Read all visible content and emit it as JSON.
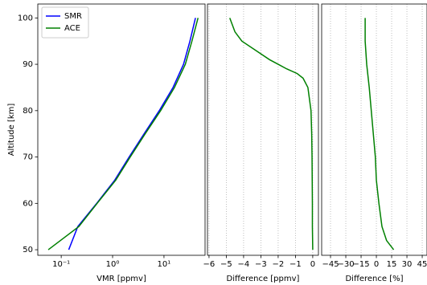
{
  "chart_data": [
    {
      "type": "line",
      "xlabel": "VMR [ppmv]",
      "ylabel": "Altitude [km]",
      "xscale": "log",
      "xlim": [
        0.035,
        63
      ],
      "xticks": [
        {
          "value": 0.1,
          "label": "10⁻¹"
        },
        {
          "value": 1,
          "label": "10⁰"
        },
        {
          "value": 10,
          "label": "10¹"
        }
      ],
      "ylim": [
        48.8,
        103
      ],
      "yticks": [
        50,
        60,
        70,
        80,
        90,
        100
      ],
      "legend": "upper left",
      "y": [
        50,
        55,
        60,
        65,
        70,
        75,
        80,
        85,
        90,
        95,
        100
      ],
      "series": [
        {
          "name": "SMR",
          "color": "#0000ff",
          "values": [
            0.14,
            0.21,
            0.49,
            1.1,
            2.1,
            4.1,
            8.1,
            15,
            24,
            32,
            41
          ]
        },
        {
          "name": "ACE",
          "color": "#008000",
          "values": [
            0.056,
            0.22,
            0.5,
            1.15,
            2.2,
            4.3,
            8.6,
            16,
            26,
            35,
            46
          ]
        }
      ]
    },
    {
      "type": "line",
      "xlabel": "Difference [ppmv]",
      "grid": true,
      "xlim": [
        -6.09,
        0.33
      ],
      "xticks": [
        {
          "value": -6,
          "label": "−6"
        },
        {
          "value": -5,
          "label": "−5"
        },
        {
          "value": -4,
          "label": "−4"
        },
        {
          "value": -3,
          "label": "−3"
        },
        {
          "value": -2,
          "label": "−2"
        },
        {
          "value": -1,
          "label": "−1"
        },
        0
      ],
      "ylim": [
        48.8,
        103
      ],
      "y": [
        50,
        55,
        60,
        65,
        70,
        75,
        80,
        85,
        87,
        88,
        89,
        90,
        91,
        93,
        95,
        97,
        100
      ],
      "series": [
        {
          "color": "#008000",
          "values": [
            0,
            -0.02,
            -0.02,
            -0.03,
            -0.04,
            -0.06,
            -0.1,
            -0.28,
            -0.56,
            -0.9,
            -1.5,
            -2.0,
            -2.5,
            -3.3,
            -4.1,
            -4.5,
            -4.8
          ]
        }
      ]
    },
    {
      "type": "line",
      "xlabel": "Difference [%]",
      "grid": true,
      "xlim": [
        -53.7,
        49.7
      ],
      "xticks": [
        {
          "value": -45,
          "label": "−45"
        },
        {
          "value": -30,
          "label": "−30"
        },
        {
          "value": -15,
          "label": "−15"
        },
        0,
        15,
        30,
        45
      ],
      "ylim": [
        48.8,
        103
      ],
      "y": [
        50,
        52,
        55,
        60,
        65,
        70,
        75,
        80,
        85,
        90,
        95,
        100
      ],
      "series": [
        {
          "color": "#008000",
          "values": [
            17,
            10,
            5.5,
            2.5,
            0,
            -1,
            -3,
            -5,
            -7,
            -9.5,
            -11,
            -11
          ]
        }
      ]
    }
  ]
}
